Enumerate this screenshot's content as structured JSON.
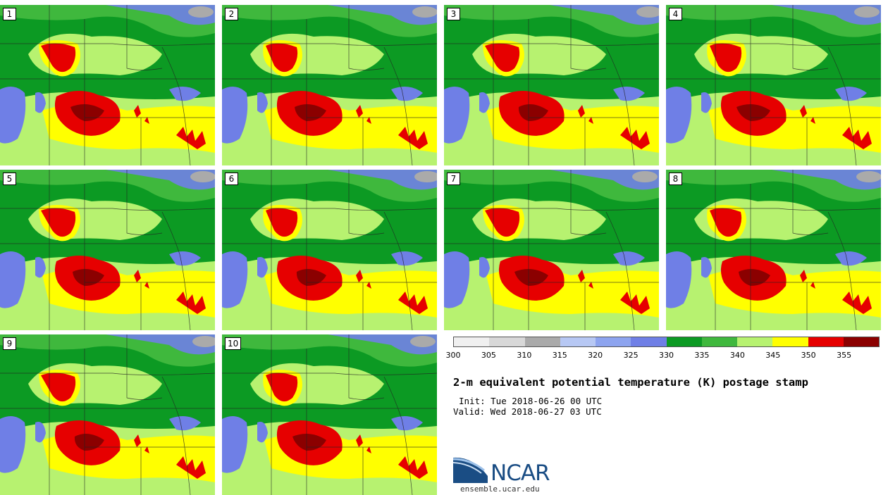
{
  "members": [
    "1",
    "2",
    "3",
    "4",
    "5",
    "6",
    "7",
    "8",
    "9",
    "10"
  ],
  "colorbar": {
    "colors": [
      "#f0f0f0",
      "#d8d8d8",
      "#aaaaaa",
      "#b7c8f4",
      "#8da4ef",
      "#6f7fe6",
      "#0c9a23",
      "#3fb83d",
      "#b7f270",
      "#ffff00",
      "#e60000",
      "#8b0000"
    ],
    "ticks": [
      "300",
      "305",
      "310",
      "315",
      "320",
      "325",
      "330",
      "335",
      "340",
      "345",
      "350",
      "355"
    ]
  },
  "title": "2-m equivalent potential temperature (K) postage stamp",
  "init": "Init: Tue 2018-06-26 00 UTC",
  "valid": "Valid: Wed 2018-06-27 03 UTC",
  "logo": {
    "text": "NCAR",
    "colors": {
      "blue": "#1a4d84",
      "light": "#7aa6d6"
    }
  },
  "site": "ensemble.ucar.edu"
}
